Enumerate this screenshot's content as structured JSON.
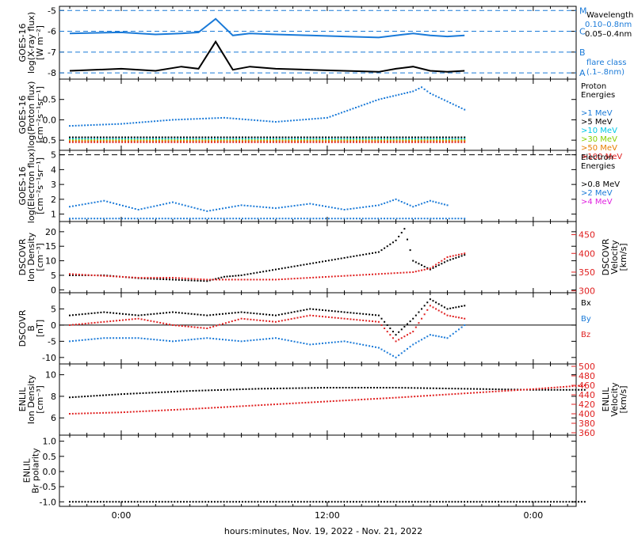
{
  "chart_data": {
    "type": "line",
    "xlabel": "hours:minutes, Nov. 19, 2022 - Nov. 21, 2022",
    "xticks": [
      "0:00",
      "12:00",
      "0:00"
    ],
    "panels": [
      {
        "id": "xray",
        "ylabel": [
          "GOES-16",
          "log(X-ray flux)",
          "[W m⁻²]"
        ],
        "ylim": [
          -8.3,
          -4.8
        ],
        "yticks": [
          "-5",
          "-6",
          "-7",
          "-8"
        ],
        "ytick_values": [
          -5,
          -6,
          -7,
          -8
        ],
        "flare_levels": [
          {
            "value": -5,
            "label": "M"
          },
          {
            "value": -6,
            "label": "C"
          },
          {
            "value": -7,
            "label": "B"
          },
          {
            "value": -8,
            "label": "A"
          }
        ],
        "legend": [
          {
            "text": "Wavelength",
            "color": "#000000"
          },
          {
            "text": "0.10–0.8nm",
            "color": "#1a7ad8"
          },
          {
            "text": "0.05–0.4nm",
            "color": "#000000"
          },
          {
            "text": "flare class",
            "color": "#1a7ad8"
          },
          {
            "text": "(.1–.8nm)",
            "color": "#1a7ad8"
          }
        ],
        "series": [
          {
            "name": "0.10–0.8nm",
            "color": "#1a7ad8",
            "x": [
              -3,
              0,
              2,
              3.5,
              4.5,
              5.5,
              6.5,
              7.5,
              9,
              11,
              13,
              15,
              16,
              17,
              18,
              19,
              20
            ],
            "y": [
              -6.1,
              -6.05,
              -6.15,
              -6.1,
              -6.05,
              -5.4,
              -6.2,
              -6.1,
              -6.15,
              -6.2,
              -6.25,
              -6.3,
              -6.2,
              -6.1,
              -6.2,
              -6.25,
              -6.2
            ]
          },
          {
            "name": "0.05–0.4nm",
            "color": "#000000",
            "x": [
              -3,
              0,
              2,
              3.5,
              4.5,
              5.5,
              6.5,
              7.5,
              9,
              11,
              13,
              15,
              16,
              17,
              18,
              19,
              20
            ],
            "y": [
              -7.9,
              -7.8,
              -7.9,
              -7.7,
              -7.8,
              -6.5,
              -7.85,
              -7.7,
              -7.8,
              -7.85,
              -7.9,
              -7.95,
              -7.8,
              -7.7,
              -7.9,
              -7.95,
              -7.9
            ]
          }
        ]
      },
      {
        "id": "proton",
        "ylabel": [
          "GOES-16",
          "log(Proton flux)",
          "[cm⁻²s⁻¹sr⁻¹]"
        ],
        "ylim": [
          -0.75,
          1.0
        ],
        "yticks": [
          "0.5",
          "0.0",
          "-0.5"
        ],
        "ytick_values": [
          0.5,
          0.0,
          -0.5
        ],
        "legend_title": [
          "Proton",
          "Energies"
        ],
        "legend": [
          {
            "text": ">1 MeV",
            "color": "#1a7ad8"
          },
          {
            "text": ">5 MeV",
            "color": "#000000"
          },
          {
            "text": ">10 MeV",
            "color": "#00c8e6"
          },
          {
            "text": ">30 MeV",
            "color": "#86d000"
          },
          {
            "text": ">50 MeV",
            "color": "#e67e00"
          },
          {
            "text": ">100 MeV",
            "color": "#e02020"
          }
        ],
        "series": [
          {
            "name": ">1 MeV",
            "color": "#1a7ad8",
            "x": [
              -3,
              0,
              3,
              6,
              9,
              12,
              13,
              14,
              15,
              16,
              17,
              17.5,
              18,
              19,
              20
            ],
            "y": [
              -0.15,
              -0.1,
              0.0,
              0.05,
              -0.05,
              0.05,
              0.2,
              0.35,
              0.5,
              0.6,
              0.7,
              0.8,
              0.65,
              0.45,
              0.25
            ]
          },
          {
            "name": ">5 MeV",
            "color": "#000000",
            "x": [
              -3,
              20
            ],
            "y": [
              -0.43,
              -0.43
            ]
          },
          {
            "name": ">10 MeV",
            "color": "#00c8e6",
            "x": [
              -3,
              20
            ],
            "y": [
              -0.47,
              -0.47
            ]
          },
          {
            "name": ">30 MeV",
            "color": "#86d000",
            "x": [
              -3,
              20
            ],
            "y": [
              -0.5,
              -0.5
            ]
          },
          {
            "name": ">50 MeV",
            "color": "#e67e00",
            "x": [
              -3,
              20
            ],
            "y": [
              -0.52,
              -0.52
            ]
          },
          {
            "name": ">100 MeV",
            "color": "#e02020",
            "x": [
              -3,
              20
            ],
            "y": [
              -0.55,
              -0.55
            ]
          }
        ]
      },
      {
        "id": "electron",
        "ylabel": [
          "GOES-16",
          "log(Electron flux)",
          "[cm⁻²s⁻¹sr⁻¹]"
        ],
        "ylim": [
          0.5,
          5.3
        ],
        "yticks": [
          "5",
          "4",
          "3",
          "2",
          "1"
        ],
        "ytick_values": [
          5,
          4,
          3,
          2,
          1
        ],
        "threshold": 5,
        "legend_title": [
          "Electron",
          "Energies"
        ],
        "legend": [
          {
            "text": ">0.8 MeV",
            "color": "#000000"
          },
          {
            "text": ">2 MeV",
            "color": "#1a7ad8"
          },
          {
            "text": ">4 MeV",
            "color": "#e020e0"
          }
        ],
        "series": [
          {
            "name": ">2 MeV",
            "color": "#1a7ad8",
            "x": [
              -3,
              -1,
              1,
              3,
              5,
              7,
              9,
              11,
              13,
              15,
              16,
              17,
              18,
              19
            ],
            "y": [
              1.5,
              1.9,
              1.3,
              1.8,
              1.2,
              1.6,
              1.4,
              1.7,
              1.3,
              1.6,
              2.0,
              1.5,
              1.9,
              1.6
            ]
          },
          {
            "name": ">2 MeV baseline",
            "color": "#1a7ad8",
            "x": [
              -3,
              20
            ],
            "y": [
              0.7,
              0.7
            ]
          }
        ]
      },
      {
        "id": "dscovr-density",
        "ylabel": [
          "DSCOVR",
          "Ion Density",
          "[cm⁻³]"
        ],
        "ylabel_right": [
          "DSCOVR",
          "Velocity",
          "[km/s]"
        ],
        "ylim": [
          -1,
          23.5
        ],
        "yticks": [
          "20",
          "15",
          "10",
          "5",
          "0"
        ],
        "ytick_values": [
          20,
          15,
          10,
          5,
          0
        ],
        "yticks_right": [
          "450",
          "400",
          "350",
          "300"
        ],
        "ytick_values_right": [
          450,
          400,
          350,
          300
        ],
        "ylim_right": [
          295,
          485
        ],
        "series": [
          {
            "name": "Ion Density",
            "color": "#000000",
            "axis": "left",
            "x": [
              -3,
              -1,
              1,
              3,
              5,
              6,
              7,
              9,
              11,
              13,
              15,
              16,
              16.5,
              17,
              18,
              19,
              20
            ],
            "y": [
              5,
              5,
              4,
              3.5,
              3,
              4.5,
              5,
              7,
              9,
              11,
              13,
              17,
              21,
              10,
              7,
              10,
              12
            ]
          },
          {
            "name": "Velocity",
            "color": "#e02020",
            "axis": "right",
            "x": [
              -3,
              -1,
              1,
              3,
              5,
              7,
              9,
              11,
              13,
              15,
              17,
              18,
              19,
              20
            ],
            "y": [
              345,
              340,
              335,
              335,
              330,
              330,
              330,
              335,
              340,
              345,
              350,
              360,
              390,
              400
            ]
          }
        ]
      },
      {
        "id": "dscovr-field",
        "ylabel": [
          "DSCOVR",
          "B",
          "[nT]"
        ],
        "ylim": [
          -12,
          10
        ],
        "yticks": [
          "5",
          "0",
          "-5",
          "-10"
        ],
        "ytick_values": [
          5,
          0,
          -5,
          -10
        ],
        "legend": [
          {
            "text": "Bx",
            "color": "#000000"
          },
          {
            "text": "By",
            "color": "#1a7ad8"
          },
          {
            "text": "Bz",
            "color": "#e02020"
          }
        ],
        "series": [
          {
            "name": "Bx",
            "color": "#000000",
            "x": [
              -3,
              -1,
              1,
              3,
              5,
              7,
              9,
              11,
              13,
              15,
              16,
              17,
              18,
              19,
              20
            ],
            "y": [
              3,
              4,
              3,
              4,
              3,
              4,
              3,
              5,
              4,
              3,
              -3,
              2,
              8,
              5,
              6
            ]
          },
          {
            "name": "By",
            "color": "#1a7ad8",
            "x": [
              -3,
              -1,
              1,
              3,
              5,
              7,
              9,
              11,
              13,
              15,
              16,
              17,
              18,
              19,
              20
            ],
            "y": [
              -5,
              -4,
              -4,
              -5,
              -4,
              -5,
              -4,
              -6,
              -5,
              -7,
              -10,
              -6,
              -3,
              -4,
              0
            ]
          },
          {
            "name": "Bz",
            "color": "#e02020",
            "x": [
              -3,
              -1,
              1,
              3,
              5,
              7,
              9,
              11,
              13,
              15,
              16,
              17,
              18,
              19,
              20
            ],
            "y": [
              0,
              1,
              2,
              0,
              -1,
              2,
              1,
              3,
              2,
              1,
              -5,
              -2,
              6,
              3,
              2
            ]
          }
        ]
      },
      {
        "id": "enlil-density",
        "ylabel": [
          "ENLIL",
          "Ion Density",
          "[cm⁻³]"
        ],
        "ylabel_right": [
          "ENLIL",
          "Velocity",
          "[km/s]"
        ],
        "ylim": [
          4.4,
          11
        ],
        "yticks": [
          "10",
          "8",
          "6"
        ],
        "ytick_values": [
          10,
          8,
          6
        ],
        "yticks_right": [
          "500",
          "480",
          "460",
          "440",
          "420",
          "400",
          "380",
          "360"
        ],
        "ytick_values_right": [
          500,
          480,
          460,
          440,
          420,
          400,
          380,
          360
        ],
        "ylim_right": [
          355,
          505
        ],
        "series": [
          {
            "name": "Ion Density",
            "color": "#000000",
            "axis": "left",
            "x": [
              -3,
              0,
              4,
              8,
              12,
              16,
              20,
              24,
              27
            ],
            "y": [
              7.9,
              8.2,
              8.5,
              8.7,
              8.8,
              8.8,
              8.7,
              8.6,
              8.6
            ]
          },
          {
            "name": "Velocity",
            "color": "#e02020",
            "axis": "right",
            "x": [
              -3,
              0,
              4,
              8,
              12,
              16,
              20,
              24,
              27
            ],
            "y": [
              400,
              403,
              410,
              418,
              426,
              434,
              443,
              452,
              460
            ]
          }
        ]
      },
      {
        "id": "enlil-polarity",
        "ylabel": [
          "ENLIL",
          "Br polarity"
        ],
        "ylim": [
          -1.15,
          1.2
        ],
        "yticks": [
          "1.0",
          "0.5",
          "0.0",
          "-0.5",
          "-1.0"
        ],
        "ytick_values": [
          1.0,
          0.5,
          0.0,
          -0.5,
          -1.0
        ],
        "series": [
          {
            "name": "Br polarity",
            "color": "#000000",
            "x": [
              -3,
              27
            ],
            "y": [
              -1,
              -1
            ]
          }
        ]
      }
    ]
  }
}
